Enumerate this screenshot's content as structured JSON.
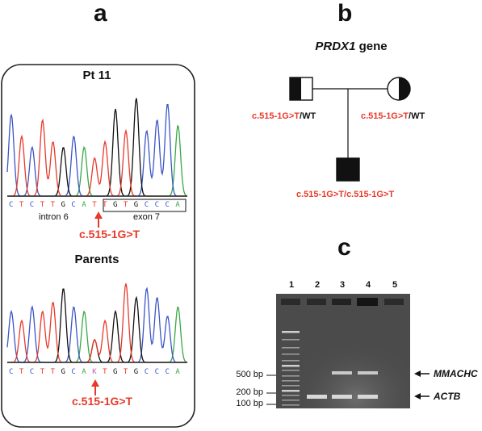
{
  "panel_a": {
    "letter": "a",
    "top_title": "Pt 11",
    "bottom_title": "Parents",
    "top_sequence": [
      "C",
      "T",
      "C",
      "T",
      "T",
      "G",
      "C",
      "A",
      "T",
      "T",
      "G",
      "T",
      "G",
      "C",
      "C",
      "C",
      "A"
    ],
    "bottom_sequence": [
      "C",
      "T",
      "C",
      "T",
      "T",
      "G",
      "C",
      "A",
      "K",
      "T",
      "G",
      "T",
      "G",
      "C",
      "C",
      "C",
      "A"
    ],
    "intron_label": "intron 6",
    "exon_label": "exon 7",
    "mutation_label_top": "c.515-1G>T",
    "mutation_label_bottom": "c.515-1G>T",
    "base_colors": {
      "A": "#3aa845",
      "C": "#3b56c7",
      "G": "#111111",
      "T": "#e8392a",
      "K": "#c45ab8"
    }
  },
  "panel_b": {
    "letter": "b",
    "gene_name": "PRDX1",
    "gene_suffix": " gene",
    "father_mut": "c.515-1G>T",
    "father_wt": "/WT",
    "mother_mut": "c.515-1G>T",
    "mother_wt": "/WT",
    "child_genotype": "c.515-1G>T/c.515-1G>T"
  },
  "panel_c": {
    "letter": "c",
    "lanes": [
      "1",
      "2",
      "3",
      "4",
      "5"
    ],
    "markers": [
      "500 bp",
      "200 bp",
      "100 bp"
    ],
    "band_upper_label": "MMACHC",
    "band_lower_label": "ACTB"
  }
}
